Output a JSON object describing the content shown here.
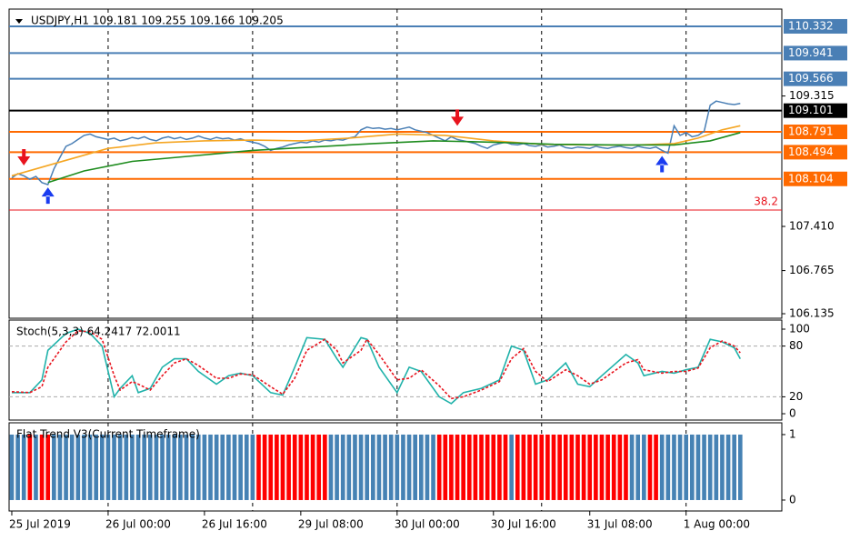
{
  "chart_data": [
    {
      "type": "line",
      "title": "USDJPY,H1  109.181 109.255 109.166 109.205",
      "x": [
        0,
        1,
        2,
        3,
        4,
        5,
        6,
        7,
        8,
        9,
        10,
        11,
        12,
        13,
        14,
        15,
        16,
        17,
        18,
        19,
        20,
        21,
        22,
        23,
        24,
        25,
        26,
        27,
        28,
        29,
        30,
        31,
        32,
        33,
        34,
        35,
        36,
        37,
        38,
        39,
        40,
        41,
        42,
        43,
        44,
        45,
        46,
        47,
        48,
        49,
        50,
        51,
        52,
        53,
        54,
        55,
        56,
        57,
        58,
        59,
        60,
        61,
        62,
        63,
        64,
        65,
        66,
        67,
        68,
        69,
        70,
        71,
        72,
        73,
        74,
        75,
        76,
        77,
        78,
        79,
        80,
        81,
        82,
        83,
        84,
        85,
        86,
        87,
        88,
        89,
        90,
        91,
        92,
        93,
        94,
        95,
        96,
        97,
        98,
        99,
        100,
        101,
        102,
        103,
        104,
        105,
        106,
        107,
        108,
        109,
        110,
        111,
        112,
        113,
        114,
        115,
        116,
        117,
        118,
        119,
        120,
        121
      ],
      "series": [
        {
          "color": "#4a7fb5",
          "values": [
            108.12,
            108.18,
            108.15,
            108.1,
            108.14,
            108.05,
            108.02,
            108.25,
            108.42,
            108.58,
            108.62,
            108.68,
            108.74,
            108.76,
            108.72,
            108.7,
            108.68,
            108.7,
            108.66,
            108.68,
            108.71,
            108.69,
            108.72,
            108.68,
            108.66,
            108.7,
            108.72,
            108.69,
            108.71,
            108.68,
            108.7,
            108.73,
            108.7,
            108.68,
            108.71,
            108.69,
            108.7,
            108.67,
            108.69,
            108.66,
            108.64,
            108.62,
            108.58,
            108.52,
            108.55,
            108.57,
            108.6,
            108.62,
            108.64,
            108.63,
            108.66,
            108.64,
            108.67,
            108.66,
            108.68,
            108.67,
            108.7,
            108.72,
            108.82,
            108.86,
            108.84,
            108.85,
            108.83,
            108.84,
            108.82,
            108.84,
            108.86,
            108.82,
            108.8,
            108.78,
            108.74,
            108.7,
            108.66,
            108.72,
            108.68,
            108.66,
            108.64,
            108.62,
            108.58,
            108.55,
            108.6,
            108.62,
            108.64,
            108.61,
            108.6,
            108.62,
            108.59,
            108.58,
            108.6,
            108.57,
            108.58,
            108.6,
            108.56,
            108.55,
            108.57,
            108.56,
            108.55,
            108.58,
            108.56,
            108.55,
            108.57,
            108.58,
            108.56,
            108.55,
            108.58,
            108.56,
            108.55,
            108.57,
            108.52,
            108.48,
            108.88,
            108.74,
            108.78,
            108.72,
            108.74,
            108.8,
            109.18,
            109.24,
            109.22,
            109.2,
            109.19,
            109.205
          ]
        },
        {
          "color": "#f5a623",
          "x": [
            0,
            8,
            16,
            24,
            32,
            40,
            48,
            56,
            64,
            72,
            80,
            88,
            96,
            104,
            110,
            114,
            118,
            121
          ],
          "values": [
            108.15,
            108.35,
            108.55,
            108.63,
            108.66,
            108.67,
            108.66,
            108.7,
            108.76,
            108.74,
            108.66,
            108.61,
            108.6,
            108.6,
            108.62,
            108.7,
            108.82,
            108.88
          ]
        },
        {
          "color": "#1e8c1e",
          "x": [
            6,
            12,
            20,
            30,
            40,
            50,
            60,
            70,
            80,
            90,
            100,
            110,
            116,
            121
          ],
          "values": [
            108.05,
            108.22,
            108.36,
            108.44,
            108.52,
            108.57,
            108.62,
            108.66,
            108.64,
            108.61,
            108.6,
            108.6,
            108.66,
            108.78
          ]
        }
      ],
      "signals": [
        {
          "x": 2,
          "value": 108.3,
          "color": "#e8141e"
        },
        {
          "x": 6,
          "value": 107.98,
          "color": "#1a3cf0"
        },
        {
          "x": 74,
          "value": 108.88,
          "color": "#e8141e"
        },
        {
          "x": 108,
          "value": 108.44,
          "color": "#1a3cf0"
        }
      ],
      "levels": [
        {
          "value": 110.332,
          "color": "#4a7fb5"
        },
        {
          "value": 109.941,
          "color": "#4a7fb5"
        },
        {
          "value": 109.566,
          "color": "#4a7fb5"
        },
        {
          "value": 109.101,
          "color": "#000000"
        },
        {
          "value": 108.791,
          "color": "#ff6a00"
        },
        {
          "value": 108.494,
          "color": "#ff6a00"
        },
        {
          "value": 108.104,
          "color": "#ff6a00"
        }
      ],
      "fibo": {
        "value": 107.649,
        "label": "38.2",
        "color": "#e8141e"
      },
      "ylim": [
        106.069,
        110.584
      ],
      "yticks": [
        106.135,
        106.765,
        {
          "value": 107.41,
          "label": "107.410"
        },
        109.315
      ],
      "xlim": [
        -0.45,
        127.9
      ],
      "xticks": [
        {
          "value": 0,
          "label": "25 Jul 2019"
        },
        {
          "value": 16,
          "label": "26 Jul 00:00"
        },
        {
          "value": 32,
          "label": "26 Jul 16:00"
        },
        {
          "value": 48,
          "label": "29 Jul 08:00"
        },
        {
          "value": 64,
          "label": "30 Jul 00:00"
        },
        {
          "value": 80,
          "label": "30 Jul 16:00"
        },
        {
          "value": 96,
          "label": "31 Jul 08:00"
        },
        {
          "value": 112,
          "label": "1 Aug 00:00"
        }
      ],
      "separators": [
        16,
        40,
        64,
        88,
        112
      ]
    },
    {
      "type": "line",
      "title": "Stoch(5,3,3) 64.2417 72.0011",
      "x": [
        0,
        3,
        5,
        6,
        9,
        11,
        13,
        15,
        17,
        18,
        20,
        21,
        23,
        25,
        27,
        29,
        31,
        34,
        36,
        38,
        40,
        43,
        45,
        47,
        49,
        52,
        54,
        55,
        58,
        59,
        61,
        64,
        66,
        68,
        71,
        73,
        75,
        78,
        81,
        83,
        85,
        87,
        89,
        92,
        94,
        96,
        98,
        102,
        104,
        105,
        108,
        110,
        112,
        114,
        116,
        118,
        120,
        121
      ],
      "series": [
        {
          "color": "#20b2aa",
          "values": [
            25,
            25,
            40,
            75,
            95,
            100,
            95,
            80,
            20,
            30,
            45,
            25,
            30,
            55,
            65,
            65,
            50,
            35,
            45,
            48,
            45,
            25,
            22,
            55,
            90,
            88,
            65,
            55,
            90,
            88,
            55,
            25,
            55,
            50,
            20,
            12,
            25,
            30,
            40,
            80,
            75,
            35,
            40,
            60,
            35,
            32,
            45,
            70,
            60,
            45,
            50,
            48,
            52,
            55,
            88,
            85,
            78,
            65
          ]
        },
        {
          "color": "#e8141e",
          "dashed": true,
          "values": [
            26,
            25,
            32,
            55,
            85,
            98,
            97,
            88,
            45,
            28,
            38,
            35,
            28,
            45,
            60,
            65,
            57,
            42,
            42,
            47,
            46,
            32,
            23,
            42,
            75,
            88,
            75,
            60,
            75,
            88,
            70,
            40,
            42,
            52,
            33,
            18,
            20,
            28,
            38,
            65,
            77,
            50,
            38,
            52,
            45,
            35,
            40,
            60,
            64,
            52,
            48,
            50,
            50,
            54,
            78,
            86,
            80,
            72
          ]
        }
      ],
      "ylim": [
        -7.5,
        110.75
      ],
      "yticks": [
        0,
        20,
        80,
        100
      ],
      "levels": [
        {
          "value": 80,
          "color": "#aaaaaa"
        },
        {
          "value": 20,
          "color": "#aaaaaa"
        }
      ]
    },
    {
      "type": "bar",
      "title": "Flat Trend V3(Current Timeframe)",
      "x": [
        0,
        1,
        2,
        3,
        4,
        5,
        6,
        7,
        8,
        9,
        10,
        11,
        12,
        13,
        14,
        15,
        16,
        17,
        18,
        19,
        20,
        21,
        22,
        23,
        24,
        25,
        26,
        27,
        28,
        29,
        30,
        31,
        32,
        33,
        34,
        35,
        36,
        37,
        38,
        39,
        40,
        41,
        42,
        43,
        44,
        45,
        46,
        47,
        48,
        49,
        50,
        51,
        52,
        53,
        54,
        55,
        56,
        57,
        58,
        59,
        60,
        61,
        62,
        63,
        64,
        65,
        66,
        67,
        68,
        69,
        70,
        71,
        72,
        73,
        74,
        75,
        76,
        77,
        78,
        79,
        80,
        81,
        82,
        83,
        84,
        85,
        86,
        87,
        88,
        89,
        90,
        91,
        92,
        93,
        94,
        95,
        96,
        97,
        98,
        99,
        100,
        101,
        102,
        103,
        104,
        105,
        106,
        107,
        108,
        109,
        110,
        111,
        112,
        113,
        114,
        115,
        116,
        117,
        118,
        119,
        120,
        121
      ],
      "values": [
        1,
        1,
        1,
        1,
        1,
        1,
        1,
        1,
        1,
        1,
        1,
        1,
        1,
        1,
        1,
        1,
        1,
        1,
        1,
        1,
        1,
        1,
        1,
        1,
        1,
        1,
        1,
        1,
        1,
        1,
        1,
        1,
        1,
        1,
        1,
        1,
        1,
        1,
        1,
        1,
        1,
        1,
        1,
        1,
        1,
        1,
        1,
        1,
        1,
        1,
        1,
        1,
        1,
        1,
        1,
        1,
        1,
        1,
        1,
        1,
        1,
        1,
        1,
        1,
        1,
        1,
        1,
        1,
        1,
        1,
        1,
        1,
        1,
        1,
        1,
        1,
        1,
        1,
        1,
        1,
        1,
        1,
        1,
        1,
        1,
        1,
        1,
        1,
        1,
        1,
        1,
        1,
        1,
        1,
        1,
        1,
        1,
        1,
        1,
        1,
        1,
        1,
        1,
        1,
        1,
        1,
        1,
        1,
        1,
        1,
        1,
        1,
        1,
        1,
        1,
        1,
        1,
        1,
        1,
        1,
        1,
        1
      ],
      "colors": [
        "steelblue",
        "steelblue",
        "steelblue",
        "red",
        "steelblue",
        "red",
        "red",
        "steelblue",
        "steelblue",
        "steelblue",
        "steelblue",
        "steelblue",
        "steelblue",
        "steelblue",
        "steelblue",
        "steelblue",
        "steelblue",
        "steelblue",
        "steelblue",
        "steelblue",
        "steelblue",
        "steelblue",
        "steelblue",
        "steelblue",
        "steelblue",
        "steelblue",
        "steelblue",
        "steelblue",
        "steelblue",
        "steelblue",
        "steelblue",
        "steelblue",
        "steelblue",
        "steelblue",
        "steelblue",
        "steelblue",
        "steelblue",
        "steelblue",
        "steelblue",
        "steelblue",
        "steelblue",
        "red",
        "red",
        "red",
        "red",
        "red",
        "red",
        "red",
        "red",
        "red",
        "red",
        "red",
        "red",
        "steelblue",
        "steelblue",
        "steelblue",
        "steelblue",
        "steelblue",
        "steelblue",
        "steelblue",
        "steelblue",
        "steelblue",
        "steelblue",
        "steelblue",
        "steelblue",
        "steelblue",
        "steelblue",
        "steelblue",
        "steelblue",
        "steelblue",
        "steelblue",
        "red",
        "red",
        "red",
        "red",
        "red",
        "red",
        "red",
        "red",
        "red",
        "red",
        "red",
        "red",
        "steelblue",
        "red",
        "red",
        "red",
        "red",
        "red",
        "red",
        "red",
        "red",
        "red",
        "red",
        "red",
        "red",
        "red",
        "red",
        "red",
        "red",
        "red",
        "red",
        "red",
        "steelblue",
        "steelblue",
        "steelblue",
        "red",
        "red",
        "steelblue",
        "steelblue",
        "steelblue",
        "steelblue",
        "steelblue",
        "steelblue",
        "steelblue",
        "steelblue",
        "steelblue",
        "steelblue",
        "steelblue",
        "steelblue",
        "steelblue",
        "steelblue"
      ],
      "ylim": [
        -0.167,
        1.18
      ],
      "yticks": [
        0,
        1
      ]
    }
  ]
}
